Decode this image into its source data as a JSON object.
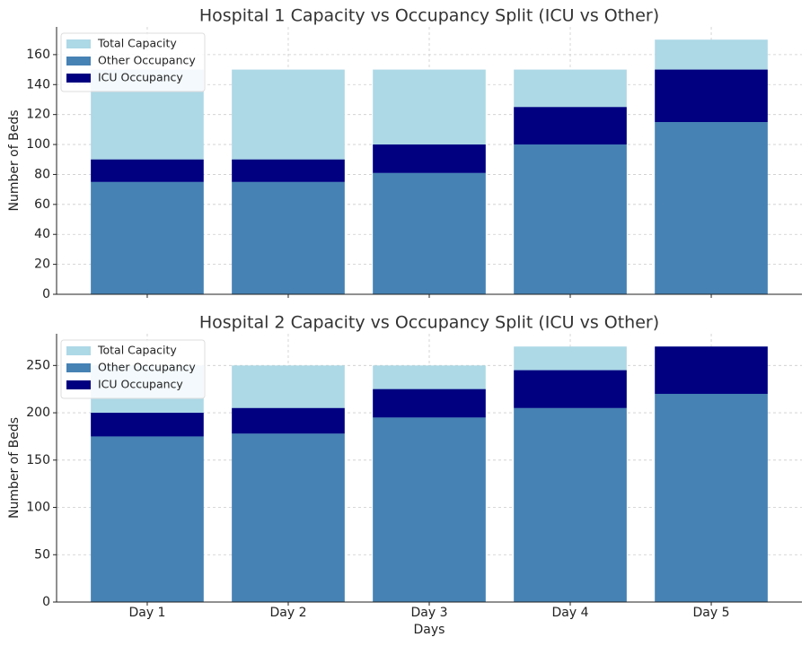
{
  "chart_data": [
    {
      "type": "bar",
      "title": "Hospital 1 Capacity vs Occupancy Split (ICU vs Other)",
      "y_label": "Number of Beds",
      "categories": [
        null,
        null,
        null,
        null,
        null
      ],
      "series": [
        {
          "name": "Total Capacity",
          "color": "#add8e6",
          "values": [
            150,
            150,
            150,
            150,
            170
          ]
        },
        {
          "name": "Other Occupancy",
          "color": "#4682b4",
          "values": [
            75,
            75,
            81,
            100,
            115
          ]
        },
        {
          "name": "ICU Occupancy",
          "color": "#000080",
          "values": [
            15,
            15,
            19,
            25,
            35
          ],
          "stacked_on": "Other Occupancy"
        }
      ],
      "ylim": [
        0,
        178.5
      ],
      "yticks": [
        0,
        20,
        40,
        60,
        80,
        100,
        120,
        140,
        160
      ],
      "grid": true,
      "legend": "upper left"
    },
    {
      "type": "bar",
      "title": "Hospital 2 Capacity vs Occupancy Split (ICU vs Other)",
      "x_label": "Days",
      "y_label": "Number of Beds",
      "categories": [
        "Day 1",
        "Day 2",
        "Day 3",
        "Day 4",
        "Day 5"
      ],
      "series": [
        {
          "name": "Total Capacity",
          "color": "#add8e6",
          "values": [
            250,
            250,
            250,
            270,
            270
          ]
        },
        {
          "name": "Other Occupancy",
          "color": "#4682b4",
          "values": [
            175,
            178,
            195,
            205,
            220
          ]
        },
        {
          "name": "ICU Occupancy",
          "color": "#000080",
          "values": [
            25,
            27,
            30,
            40,
            50
          ],
          "stacked_on": "Other Occupancy"
        }
      ],
      "ylim": [
        0,
        283.5
      ],
      "yticks": [
        0,
        50,
        100,
        150,
        200,
        250
      ],
      "grid": true,
      "legend": "upper left"
    }
  ]
}
